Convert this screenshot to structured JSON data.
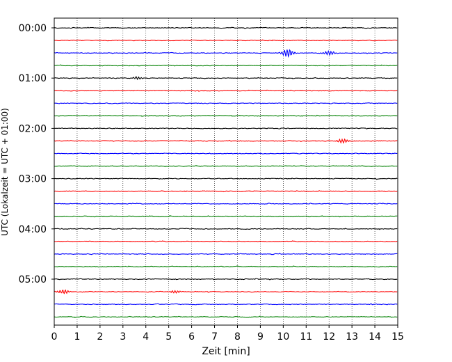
{
  "chart_data": {
    "type": "line",
    "title": "",
    "xlabel": "Zeit  [min]",
    "ylabel": "UTC (Lokalzeit = UTC + 01:00)",
    "xlim": [
      0,
      15
    ],
    "x_ticks": [
      "0",
      "1",
      "2",
      "3",
      "4",
      "5",
      "6",
      "7",
      "8",
      "9",
      "10",
      "11",
      "12",
      "13",
      "14",
      "15"
    ],
    "y_ticks": [
      "00:00",
      "01:00",
      "02:00",
      "03:00",
      "04:00",
      "05:00"
    ],
    "traces_per_hour": 4,
    "trace_count": 24,
    "colors": [
      "#000000",
      "#ff0000",
      "#0000ff",
      "#008000"
    ],
    "grid": "vertical dotted at each minute",
    "events": [
      {
        "trace": 2,
        "minute": 10.2,
        "amplitude": "large"
      },
      {
        "trace": 2,
        "minute": 12.0,
        "amplitude": "medium"
      },
      {
        "trace": 9,
        "minute": 12.6,
        "amplitude": "medium"
      },
      {
        "trace": 21,
        "minute": 0.4,
        "amplitude": "medium"
      },
      {
        "trace": 21,
        "minute": 5.3,
        "amplitude": "small"
      },
      {
        "trace": 4,
        "minute": 3.6,
        "amplitude": "small"
      }
    ]
  }
}
